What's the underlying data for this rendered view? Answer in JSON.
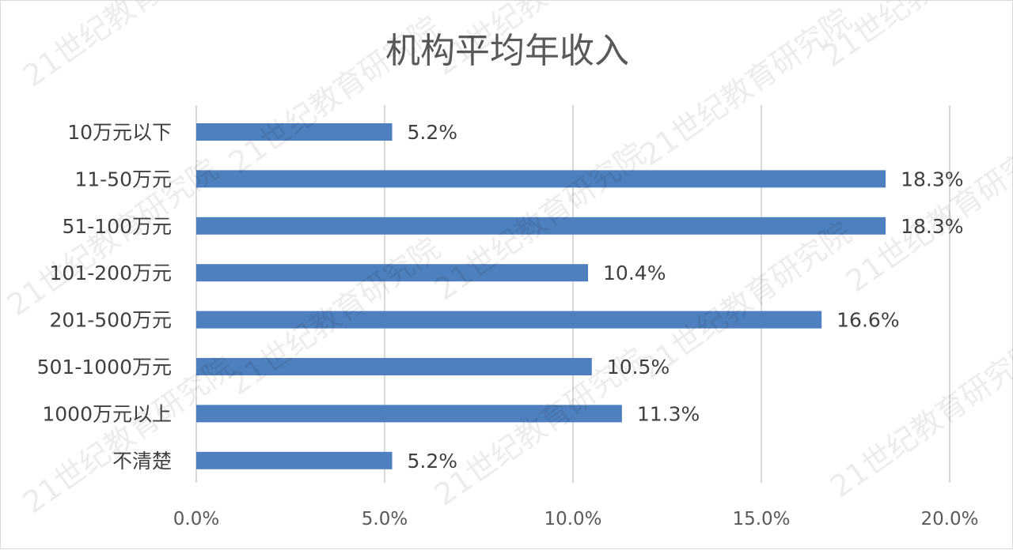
{
  "chart_data": {
    "type": "bar",
    "orientation": "horizontal",
    "title": "机构平均年收入",
    "categories": [
      "10万元以下",
      "11-50万元",
      "51-100万元",
      "101-200万元",
      "201-500万元",
      "501-1000万元",
      "1000万元以上",
      "不清楚"
    ],
    "series": [
      {
        "values": [
          5.2,
          18.3,
          18.3,
          10.4,
          16.6,
          10.5,
          11.3,
          5.2
        ],
        "labels": [
          "5.2%",
          "18.3%",
          "18.3%",
          "10.4%",
          "16.6%",
          "10.5%",
          "11.3%",
          "5.2%"
        ]
      }
    ],
    "xlim": [
      0,
      20
    ],
    "xticks": [
      0,
      5,
      10,
      15,
      20
    ],
    "xtick_labels": [
      "0.0%",
      "5.0%",
      "10.0%",
      "15.0%",
      "20.0%"
    ],
    "xlabel": "",
    "ylabel": "",
    "grid": true,
    "legend": "none",
    "bar_color": "#4e7fbe",
    "gridline_color": "#d9d9d9"
  },
  "watermark_text": "21世纪教育研究院"
}
